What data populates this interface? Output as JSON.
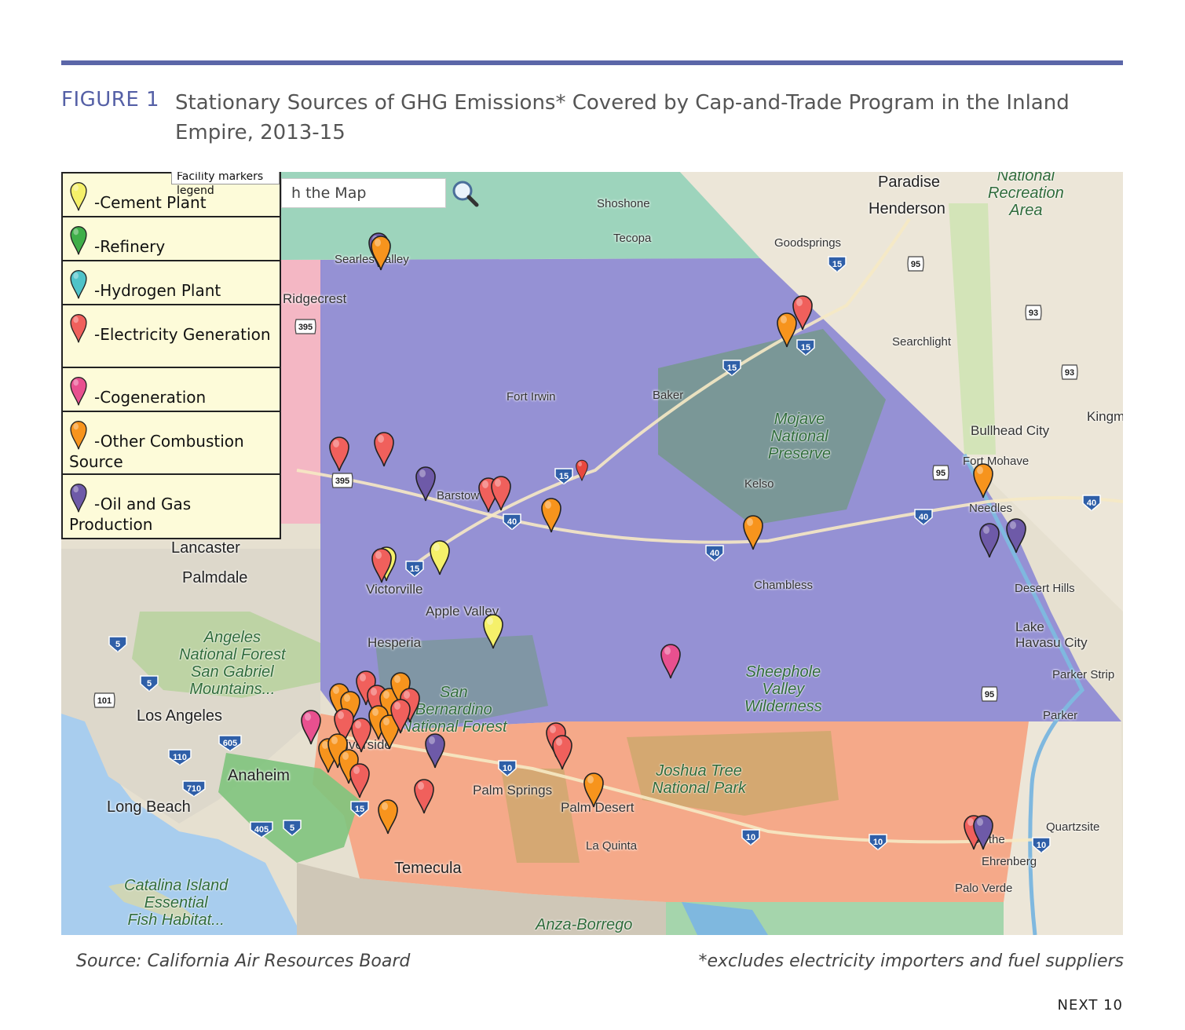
{
  "figure": {
    "label": "FIGURE 1",
    "title": "Stationary Sources of GHG Emissions* Covered by Cap-and-Trade Program in the Inland Empire, 2013-15"
  },
  "map": {
    "search_placeholder": "h the Map",
    "legend_tooltip": "Facility markers legend",
    "legend": [
      {
        "type": "cement",
        "label": "-Cement Plant",
        "color": "#f5f06a"
      },
      {
        "type": "refinery",
        "label": "-Refinery",
        "color": "#3fae49"
      },
      {
        "type": "hydrogen",
        "label": "-Hydrogen Plant",
        "color": "#4fc3c9"
      },
      {
        "type": "electricity",
        "label": "-Electricity Generation",
        "color": "#f0605c"
      },
      {
        "type": "cogeneration",
        "label": "-Cogeneration",
        "color": "#e8508f"
      },
      {
        "type": "other",
        "label": "-Other Combustion Source",
        "color": "#f7941d"
      },
      {
        "type": "oilgas",
        "label": "-Oil and Gas Production",
        "color": "#6e5aa8"
      }
    ],
    "places": [
      {
        "name": "Paradise",
        "cls": "big",
        "pos": [
          1040,
          2
        ]
      },
      {
        "name": "Henderson",
        "cls": "big",
        "pos": [
          1028,
          36
        ]
      },
      {
        "name": "Shoshone",
        "cls": "small",
        "pos": [
          682,
          32
        ]
      },
      {
        "name": "Tecopa",
        "cls": "small",
        "pos": [
          703,
          76
        ]
      },
      {
        "name": "Goodsprings",
        "cls": "small",
        "pos": [
          908,
          82
        ]
      },
      {
        "name": "Searles Valley",
        "cls": "small",
        "pos": [
          348,
          103
        ]
      },
      {
        "name": "Ridgecrest",
        "cls": "med",
        "pos": [
          282,
          152
        ]
      },
      {
        "name": "Searchlight",
        "cls": "small",
        "pos": [
          1058,
          208
        ]
      },
      {
        "name": "Fort Irwin",
        "cls": "small",
        "pos": [
          567,
          278
        ]
      },
      {
        "name": "Baker",
        "cls": "small",
        "pos": [
          753,
          276
        ]
      },
      {
        "name": "Kingm",
        "cls": "med",
        "pos": [
          1306,
          302
        ]
      },
      {
        "name": "Bullhead City",
        "cls": "med",
        "pos": [
          1158,
          320
        ]
      },
      {
        "name": "Fort Mohave",
        "cls": "small",
        "pos": [
          1148,
          360
        ]
      },
      {
        "name": "Kelso",
        "cls": "small",
        "pos": [
          870,
          389
        ]
      },
      {
        "name": "Barstow",
        "cls": "small",
        "pos": [
          478,
          404
        ]
      },
      {
        "name": "Needles",
        "cls": "small",
        "pos": [
          1156,
          420
        ]
      },
      {
        "name": "Lancaster",
        "cls": "big",
        "pos": [
          140,
          468
        ]
      },
      {
        "name": "Palmdale",
        "cls": "big",
        "pos": [
          154,
          506
        ]
      },
      {
        "name": "Victorville",
        "cls": "med",
        "pos": [
          388,
          522
        ]
      },
      {
        "name": "Chambless",
        "cls": "small",
        "pos": [
          882,
          518
        ]
      },
      {
        "name": "Desert Hills",
        "cls": "small",
        "pos": [
          1214,
          522
        ]
      },
      {
        "name": "Apple Valley",
        "cls": "med",
        "pos": [
          464,
          550
        ]
      },
      {
        "name": "Lake\nHavasu City",
        "cls": "med",
        "pos": [
          1215,
          570
        ]
      },
      {
        "name": "Hesperia",
        "cls": "med",
        "pos": [
          390,
          590
        ]
      },
      {
        "name": "Parker Strip",
        "cls": "small",
        "pos": [
          1262,
          632
        ]
      },
      {
        "name": "Parker",
        "cls": "small",
        "pos": [
          1250,
          684
        ]
      },
      {
        "name": "Los Angeles",
        "cls": "big",
        "pos": [
          96,
          682
        ]
      },
      {
        "name": "Anaheim",
        "cls": "big",
        "pos": [
          212,
          758
        ]
      },
      {
        "name": "Palm Springs",
        "cls": "med",
        "pos": [
          524,
          778
        ]
      },
      {
        "name": "Palm Desert",
        "cls": "med",
        "pos": [
          636,
          800
        ]
      },
      {
        "name": "Long Beach",
        "cls": "big",
        "pos": [
          58,
          798
        ]
      },
      {
        "name": "Quartzsite",
        "cls": "small",
        "pos": [
          1254,
          826
        ]
      },
      {
        "name": "La Quinta",
        "cls": "small",
        "pos": [
          668,
          850
        ]
      },
      {
        "name": "Blythe",
        "cls": "small",
        "pos": [
          1160,
          842
        ]
      },
      {
        "name": "Ehrenberg",
        "cls": "small",
        "pos": [
          1172,
          870
        ]
      },
      {
        "name": "Temecula",
        "cls": "big",
        "pos": [
          424,
          876
        ]
      },
      {
        "name": "Palo Verde",
        "cls": "small",
        "pos": [
          1138,
          904
        ]
      },
      {
        "name": "Riverside",
        "cls": "med",
        "pos": [
          350,
          720
        ]
      }
    ],
    "parks": [
      {
        "name": "National\nRecreation\nArea",
        "pos": [
          1180,
          -6
        ]
      },
      {
        "name": "Mojave\nNational\nPreserve",
        "pos": [
          900,
          304
        ]
      },
      {
        "name": "Angeles\nNational Forest\nSan Gabriel\nMountains...",
        "pos": [
          150,
          582
        ]
      },
      {
        "name": "San\nBernardino\nNational Forest",
        "pos": [
          432,
          652
        ]
      },
      {
        "name": "Sheephole\nValley\nWilderness",
        "pos": [
          870,
          626
        ]
      },
      {
        "name": "Joshua Tree\nNational Park",
        "pos": [
          752,
          752
        ]
      },
      {
        "name": "Catalina Island\nEssential\nFish Habitat...",
        "pos": [
          80,
          898
        ]
      },
      {
        "name": "Anza-Borrego",
        "pos": [
          604,
          948
        ]
      }
    ],
    "shields": [
      {
        "t": "395",
        "kind": "us",
        "pos": [
          296,
          186
        ]
      },
      {
        "t": "395",
        "kind": "us",
        "pos": [
          343,
          382
        ]
      },
      {
        "t": "15",
        "kind": "i",
        "pos": [
          976,
          106
        ]
      },
      {
        "t": "95",
        "kind": "us",
        "pos": [
          1076,
          106
        ]
      },
      {
        "t": "93",
        "kind": "us",
        "pos": [
          1226,
          168
        ]
      },
      {
        "t": "93",
        "kind": "us",
        "pos": [
          1272,
          244
        ]
      },
      {
        "t": "15",
        "kind": "i",
        "pos": [
          936,
          212
        ]
      },
      {
        "t": "15",
        "kind": "i",
        "pos": [
          842,
          238
        ]
      },
      {
        "t": "15",
        "kind": "i",
        "pos": [
          628,
          376
        ]
      },
      {
        "t": "95",
        "kind": "us",
        "pos": [
          1108,
          372
        ]
      },
      {
        "t": "40",
        "kind": "i",
        "pos": [
          562,
          434
        ]
      },
      {
        "t": "40",
        "kind": "i",
        "pos": [
          1086,
          428
        ]
      },
      {
        "t": "40",
        "kind": "i",
        "pos": [
          1300,
          410
        ]
      },
      {
        "t": "40",
        "kind": "i",
        "pos": [
          820,
          474
        ]
      },
      {
        "t": "15",
        "kind": "i",
        "pos": [
          438,
          494
        ]
      },
      {
        "t": "5",
        "kind": "i",
        "pos": [
          60,
          590
        ]
      },
      {
        "t": "5",
        "kind": "i",
        "pos": [
          100,
          640
        ]
      },
      {
        "t": "101",
        "kind": "us",
        "pos": [
          40,
          662
        ]
      },
      {
        "t": "605",
        "kind": "i",
        "pos": [
          200,
          716
        ]
      },
      {
        "t": "110",
        "kind": "i",
        "pos": [
          136,
          734
        ]
      },
      {
        "t": "710",
        "kind": "i",
        "pos": [
          154,
          774
        ]
      },
      {
        "t": "95",
        "kind": "us",
        "pos": [
          1170,
          654
        ]
      },
      {
        "t": "10",
        "kind": "i",
        "pos": [
          556,
          748
        ]
      },
      {
        "t": "10",
        "kind": "i",
        "pos": [
          866,
          836
        ]
      },
      {
        "t": "10",
        "kind": "i",
        "pos": [
          1028,
          842
        ]
      },
      {
        "t": "10",
        "kind": "i",
        "pos": [
          1236,
          846
        ]
      },
      {
        "t": "15",
        "kind": "i",
        "pos": [
          368,
          800
        ]
      },
      {
        "t": "405",
        "kind": "i",
        "pos": [
          240,
          826
        ]
      },
      {
        "t": "5",
        "kind": "i",
        "pos": [
          282,
          824
        ]
      }
    ],
    "markers": [
      {
        "type": "oilgas",
        "pos": [
          390,
          76
        ]
      },
      {
        "type": "other",
        "pos": [
          393,
          80
        ]
      },
      {
        "type": "electricity",
        "pos": [
          930,
          156
        ]
      },
      {
        "type": "other",
        "pos": [
          910,
          178
        ]
      },
      {
        "type": "electricity",
        "pos": [
          340,
          336
        ]
      },
      {
        "type": "electricity",
        "pos": [
          397,
          330
        ]
      },
      {
        "type": "oilgas",
        "pos": [
          450,
          374
        ]
      },
      {
        "type": "electricity",
        "pos": [
          530,
          388
        ]
      },
      {
        "type": "electricity",
        "pos": [
          546,
          386
        ]
      },
      {
        "type": "other",
        "pos": [
          610,
          414
        ]
      },
      {
        "type": "other",
        "pos": [
          1160,
          370
        ]
      },
      {
        "type": "other",
        "pos": [
          867,
          436
        ]
      },
      {
        "type": "oilgas",
        "pos": [
          1168,
          446
        ]
      },
      {
        "type": "oilgas",
        "pos": [
          1202,
          440
        ]
      },
      {
        "type": "cement",
        "pos": [
          400,
          476
        ]
      },
      {
        "type": "electricity",
        "pos": [
          394,
          478
        ]
      },
      {
        "type": "cement",
        "pos": [
          468,
          468
        ]
      },
      {
        "type": "cement",
        "pos": [
          536,
          562
        ]
      },
      {
        "type": "cogeneration",
        "pos": [
          762,
          600
        ]
      },
      {
        "type": "cogeneration",
        "pos": [
          304,
          684
        ]
      },
      {
        "type": "electricity",
        "pos": [
          374,
          634
        ]
      },
      {
        "type": "other",
        "pos": [
          340,
          650
        ]
      },
      {
        "type": "other",
        "pos": [
          354,
          660
        ]
      },
      {
        "type": "electricity",
        "pos": [
          388,
          652
        ]
      },
      {
        "type": "other",
        "pos": [
          404,
          656
        ]
      },
      {
        "type": "other",
        "pos": [
          418,
          636
        ]
      },
      {
        "type": "electricity",
        "pos": [
          430,
          656
        ]
      },
      {
        "type": "other",
        "pos": [
          390,
          678
        ]
      },
      {
        "type": "electricity",
        "pos": [
          346,
          682
        ]
      },
      {
        "type": "electricity",
        "pos": [
          368,
          694
        ]
      },
      {
        "type": "other",
        "pos": [
          404,
          690
        ]
      },
      {
        "type": "electricity",
        "pos": [
          418,
          670
        ]
      },
      {
        "type": "other",
        "pos": [
          326,
          720
        ]
      },
      {
        "type": "other",
        "pos": [
          338,
          714
        ]
      },
      {
        "type": "other",
        "pos": [
          352,
          734
        ]
      },
      {
        "type": "electricity",
        "pos": [
          366,
          752
        ]
      },
      {
        "type": "oilgas",
        "pos": [
          462,
          714
        ]
      },
      {
        "type": "electricity",
        "pos": [
          616,
          700
        ]
      },
      {
        "type": "electricity",
        "pos": [
          624,
          716
        ]
      },
      {
        "type": "other",
        "pos": [
          664,
          764
        ]
      },
      {
        "type": "electricity",
        "pos": [
          448,
          772
        ]
      },
      {
        "type": "other",
        "pos": [
          402,
          798
        ]
      },
      {
        "type": "electricity",
        "pos": [
          1148,
          818
        ]
      },
      {
        "type": "oilgas",
        "pos": [
          1160,
          818
        ]
      }
    ]
  },
  "source": "Source: California Air Resources Board",
  "note": "*excludes electricity importers and fuel suppliers",
  "footer": "NEXT 10"
}
